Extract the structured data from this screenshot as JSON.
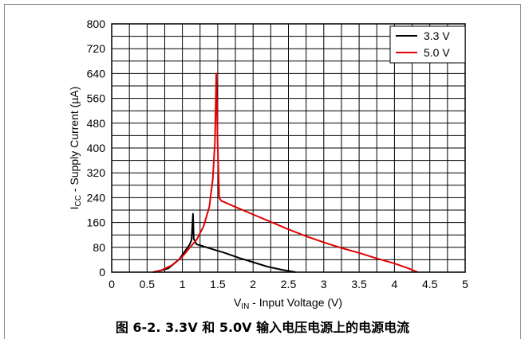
{
  "chart_data": {
    "type": "line",
    "xlabel": {
      "main": "V",
      "sub": "IN",
      "rest": " - Input Voltage (V)"
    },
    "ylabel": {
      "main": "I",
      "sub": "CC",
      "rest": " - Supply Current (µA)"
    },
    "xlim": [
      0,
      5
    ],
    "ylim": [
      0,
      800
    ],
    "xticks": [
      0,
      0.5,
      1,
      1.5,
      2,
      2.5,
      3,
      3.5,
      4,
      4.5,
      5
    ],
    "xtick_labels": [
      "0",
      "0.5",
      "1",
      "1.5",
      "2",
      "2.5",
      "3",
      "3.5",
      "4",
      "4.5",
      "5"
    ],
    "yticks": [
      0,
      80,
      160,
      240,
      320,
      400,
      480,
      560,
      640,
      720,
      800
    ],
    "ytick_labels": [
      "0",
      "80",
      "160",
      "240",
      "320",
      "400",
      "480",
      "560",
      "640",
      "720",
      "800"
    ],
    "x_minor_step": 0.25,
    "y_minor_step": 40,
    "grid": true,
    "legend_position": "top-right",
    "series": [
      {
        "name": "3.3 V",
        "color": "#000000",
        "points": [
          [
            0.6,
            0
          ],
          [
            0.8,
            12
          ],
          [
            0.95,
            40
          ],
          [
            1.05,
            72
          ],
          [
            1.1,
            88
          ],
          [
            1.13,
            104
          ],
          [
            1.15,
            188
          ],
          [
            1.16,
            108
          ],
          [
            1.2,
            90
          ],
          [
            1.4,
            76
          ],
          [
            1.6,
            62
          ],
          [
            1.8,
            46
          ],
          [
            2.0,
            32
          ],
          [
            2.2,
            18
          ],
          [
            2.4,
            8
          ],
          [
            2.6,
            0
          ]
        ]
      },
      {
        "name": "5.0 V",
        "color": "#e00000",
        "points": [
          [
            0.58,
            0
          ],
          [
            0.7,
            6
          ],
          [
            0.85,
            22
          ],
          [
            1.0,
            50
          ],
          [
            1.1,
            78
          ],
          [
            1.2,
            104
          ],
          [
            1.3,
            148
          ],
          [
            1.38,
            210
          ],
          [
            1.43,
            300
          ],
          [
            1.46,
            420
          ],
          [
            1.48,
            640
          ],
          [
            1.5,
            400
          ],
          [
            1.52,
            240
          ],
          [
            1.55,
            230
          ],
          [
            1.75,
            210
          ],
          [
            2.0,
            186
          ],
          [
            2.25,
            162
          ],
          [
            2.5,
            138
          ],
          [
            2.75,
            116
          ],
          [
            3.0,
            96
          ],
          [
            3.25,
            78
          ],
          [
            3.5,
            62
          ],
          [
            3.75,
            44
          ],
          [
            4.0,
            28
          ],
          [
            4.2,
            12
          ],
          [
            4.33,
            0
          ]
        ]
      }
    ]
  },
  "caption": "图 6-2. 3.3V 和 5.0V 输入电压电源上的电源电流"
}
